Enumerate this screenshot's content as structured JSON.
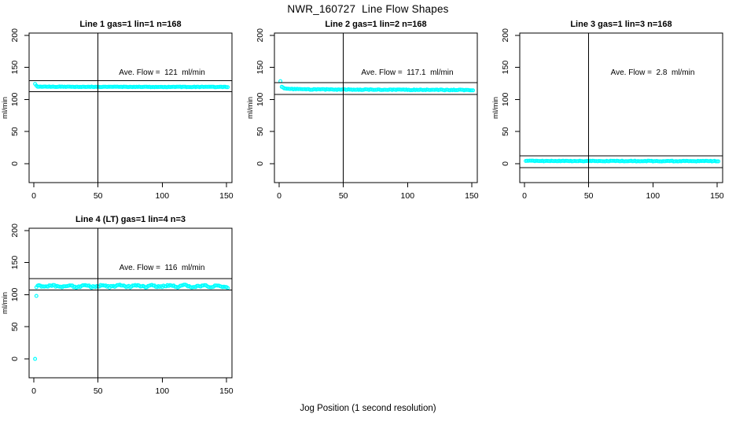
{
  "main_title": "NWR_160727  Line Flow Shapes",
  "xlabel": "Jog Position (1 second resolution)",
  "colors": {
    "point_color": "#00FFFF",
    "axis_color": "#000000",
    "background": "#FFFFFF"
  },
  "chart_data": [
    {
      "type": "scatter",
      "row": 0,
      "col": 0,
      "title": "Line 1 gas=1 lin=1 n=168",
      "gas": 1,
      "lin": 1,
      "n": 168,
      "annotation": "Ave. Flow =  121  ml/min",
      "ave_flow_ml_min": 121,
      "ylabel": "ml/min",
      "xticks": [
        0,
        50,
        100,
        150
      ],
      "yticks": [
        0,
        50,
        100,
        150,
        200
      ],
      "xlim": [
        -4,
        154
      ],
      "ylim": [
        -29,
        204
      ],
      "vline_x": 50,
      "hlines": [
        129,
        112
      ],
      "x_start": 1,
      "x_end": 151,
      "flow_profile": [
        [
          1,
          124
        ],
        [
          2,
          121.3
        ],
        [
          3,
          120.2
        ],
        [
          5,
          119.8
        ],
        [
          151,
          119.5
        ]
      ],
      "noise": 0.4,
      "wobble": {
        "amp": 0,
        "period": 1
      },
      "outliers": []
    },
    {
      "type": "scatter",
      "row": 0,
      "col": 1,
      "title": "Line 2 gas=1 lin=2 n=168",
      "gas": 1,
      "lin": 2,
      "n": 168,
      "annotation": "Ave. Flow =  117.1  ml/min",
      "ave_flow_ml_min": 117.1,
      "ylabel": "ml/min",
      "xticks": [
        0,
        50,
        100,
        150
      ],
      "yticks": [
        0,
        50,
        100,
        150,
        200
      ],
      "xlim": [
        -4,
        154
      ],
      "ylim": [
        -29,
        204
      ],
      "vline_x": 50,
      "hlines": [
        126,
        108
      ],
      "x_start": 2,
      "x_end": 151,
      "flow_profile": [
        [
          2,
          119.8
        ],
        [
          4,
          117.4
        ],
        [
          8,
          116.3
        ],
        [
          20,
          115.7
        ],
        [
          80,
          115.2
        ],
        [
          151,
          114.7
        ]
      ],
      "noise": 0.55,
      "wobble": {
        "amp": 0,
        "period": 1
      },
      "outliers": [
        [
          1,
          128.5
        ]
      ]
    },
    {
      "type": "scatter",
      "row": 0,
      "col": 2,
      "title": "Line 3 gas=1 lin=3 n=168",
      "gas": 1,
      "lin": 3,
      "n": 168,
      "annotation": "Ave. Flow =  2.8  ml/min",
      "ave_flow_ml_min": 2.8,
      "ylabel": "ml/min",
      "xticks": [
        0,
        50,
        100,
        150
      ],
      "yticks": [
        0,
        50,
        100,
        150,
        200
      ],
      "xlim": [
        -4,
        154
      ],
      "ylim": [
        -29,
        204
      ],
      "vline_x": 50,
      "hlines": [
        12,
        -6
      ],
      "x_start": 1,
      "x_end": 151,
      "flow_profile": [
        [
          1,
          4.4
        ],
        [
          10,
          4.2
        ],
        [
          151,
          4.0
        ]
      ],
      "noise": 0.5,
      "wobble": {
        "amp": 0,
        "period": 1
      },
      "outliers": []
    },
    {
      "type": "scatter",
      "row": 1,
      "col": 0,
      "title": "Line 4 (LT) gas=1 lin=4 n=3",
      "gas": 1,
      "lin": 4,
      "n": 3,
      "annotation": "Ave. Flow =  116  ml/min",
      "ave_flow_ml_min": 116,
      "ylabel": "ml/min",
      "xticks": [
        0,
        50,
        100,
        150
      ],
      "yticks": [
        0,
        50,
        100,
        150,
        200
      ],
      "xlim": [
        -4,
        154
      ],
      "ylim": [
        -29,
        204
      ],
      "vline_x": 50,
      "hlines": [
        125,
        107
      ],
      "x_start": 2,
      "x_end": 151,
      "flow_profile": [
        [
          2,
          111.8
        ],
        [
          4,
          113.0
        ],
        [
          80,
          113.3
        ],
        [
          151,
          113.0
        ]
      ],
      "noise": 1.5,
      "wobble": {
        "amp": 1.2,
        "period": 13
      },
      "outliers": [
        [
          1,
          0
        ],
        [
          2,
          98
        ]
      ]
    }
  ]
}
